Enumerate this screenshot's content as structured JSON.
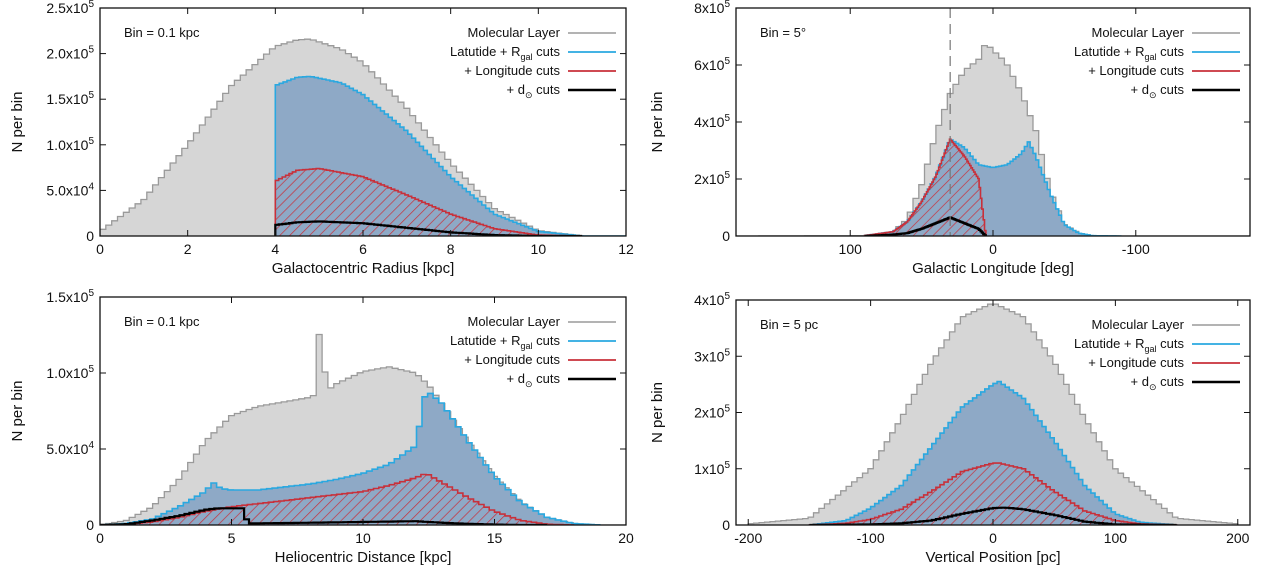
{
  "colors": {
    "molecular_layer": "#9a9a9a",
    "molecular_fill": "#d6d6d6",
    "latitude_rgal": "#2aa8e0",
    "latitude_fill": "#8ea9c6",
    "longitude": "#c8303a",
    "dsun": "#000000"
  },
  "chart_data": [
    {
      "type": "area",
      "id": "panel-radius",
      "bin_label": "Bin = 0.1 kpc",
      "xlabel": "Galactocentric Radius  [kpc]",
      "ylabel": "N per bin",
      "xlim": [
        0,
        12
      ],
      "ylim": [
        0,
        250000
      ],
      "x_reversed": false,
      "xticks": [
        {
          "value": 0,
          "label": "0"
        },
        {
          "value": 2,
          "label": "2"
        },
        {
          "value": 4,
          "label": "4"
        },
        {
          "value": 6,
          "label": "6"
        },
        {
          "value": 8,
          "label": "8"
        },
        {
          "value": 10,
          "label": "10"
        },
        {
          "value": 12,
          "label": "12"
        }
      ],
      "yticks": [
        {
          "value": 0,
          "label": "0",
          "sup": ""
        },
        {
          "value": 50000,
          "label": "5.0x10",
          "sup": "4"
        },
        {
          "value": 100000,
          "label": "1.0x10",
          "sup": "5"
        },
        {
          "value": 150000,
          "label": "1.5x10",
          "sup": "5"
        },
        {
          "value": 200000,
          "label": "2.0x10",
          "sup": "5"
        },
        {
          "value": 250000,
          "label": "2.5x10",
          "sup": "5"
        }
      ],
      "legend": [
        {
          "label": "Molecular Layer",
          "key": "molecular_layer"
        },
        {
          "label": "Latutide + R",
          "sub": "gal",
          "after": " cuts",
          "key": "latitude_rgal"
        },
        {
          "label": "+ Longitude cuts",
          "key": "longitude"
        },
        {
          "label": "+ d",
          "sub": "⊙",
          "after": " cuts",
          "key": "dsun"
        }
      ],
      "series": [
        {
          "name": "Molecular Layer",
          "style": "molecular",
          "x": [
            0,
            1,
            2,
            3,
            4,
            4.5,
            4.8,
            5.5,
            6,
            7,
            8,
            9,
            10,
            11,
            12
          ],
          "y": [
            5000,
            40000,
            100000,
            165000,
            208000,
            215000,
            216000,
            205000,
            190000,
            140000,
            80000,
            30000,
            6000,
            0,
            0
          ]
        },
        {
          "name": "Latutide + Rgal cuts",
          "style": "latitude",
          "x": [
            4,
            4.5,
            4.8,
            5.5,
            6,
            7,
            8,
            9,
            10,
            11,
            12
          ],
          "y": [
            165000,
            174000,
            175000,
            168000,
            155000,
            115000,
            65000,
            24000,
            5000,
            0,
            0
          ]
        },
        {
          "name": "+ Longitude cuts",
          "style": "longitude",
          "x": [
            4,
            4.5,
            5,
            6,
            7,
            8,
            9,
            10,
            11
          ],
          "y": [
            60000,
            72000,
            74000,
            65000,
            45000,
            24000,
            8000,
            1000,
            0
          ]
        },
        {
          "name": "+ d cuts",
          "style": "dsun",
          "x": [
            4,
            4.5,
            5,
            6,
            7,
            8,
            9,
            10,
            11
          ],
          "y": [
            12000,
            15000,
            16000,
            14000,
            9000,
            4000,
            1000,
            0,
            0
          ]
        }
      ],
      "vlines": []
    },
    {
      "type": "area",
      "id": "panel-longitude",
      "bin_label": "Bin = 5°",
      "xlabel": "Galactic Longitude  [deg]",
      "ylabel": "N per bin",
      "xlim": [
        180,
        -180
      ],
      "ylim": [
        0,
        800000
      ],
      "x_reversed": true,
      "xticks": [
        {
          "value": 100,
          "label": "100"
        },
        {
          "value": 0,
          "label": "0"
        },
        {
          "value": -100,
          "label": "-100"
        }
      ],
      "yticks": [
        {
          "value": 0,
          "label": "0",
          "sup": ""
        },
        {
          "value": 200000,
          "label": "2x10",
          "sup": "5"
        },
        {
          "value": 400000,
          "label": "4x10",
          "sup": "5"
        },
        {
          "value": 600000,
          "label": "6x10",
          "sup": "5"
        },
        {
          "value": 800000,
          "label": "8x10",
          "sup": "5"
        }
      ],
      "legend": [
        {
          "label": "Molecular Layer",
          "key": "molecular_layer"
        },
        {
          "label": "Latutide + R",
          "sub": "gal",
          "after": " cuts",
          "key": "latitude_rgal"
        },
        {
          "label": "+ Longitude cuts",
          "key": "longitude"
        },
        {
          "label": "+ d",
          "sub": "⊙",
          "after": " cuts",
          "key": "dsun"
        }
      ],
      "series": [
        {
          "name": "Molecular Layer",
          "style": "molecular",
          "x": [
            180,
            90,
            70,
            60,
            50,
            40,
            30,
            20,
            10,
            5,
            0,
            -5,
            -10,
            -20,
            -30,
            -40,
            -50,
            -60,
            -70,
            -90,
            -180
          ],
          "y": [
            0,
            1000,
            15000,
            60000,
            180000,
            360000,
            500000,
            580000,
            620000,
            680000,
            650000,
            630000,
            600000,
            500000,
            370000,
            160000,
            40000,
            10000,
            1000,
            0,
            0
          ]
        },
        {
          "name": "Latutide + Rgal cuts",
          "style": "latitude",
          "x": [
            90,
            70,
            60,
            50,
            40,
            30,
            20,
            10,
            0,
            -10,
            -20,
            -25,
            -30,
            -40,
            -50,
            -60,
            -70,
            -90
          ],
          "y": [
            1000,
            15000,
            50000,
            120000,
            210000,
            340000,
            310000,
            250000,
            240000,
            250000,
            290000,
            330000,
            280000,
            150000,
            40000,
            10000,
            1000,
            0
          ]
        },
        {
          "name": "+ Longitude cuts",
          "style": "longitude",
          "x": [
            90,
            70,
            60,
            50,
            40,
            30,
            20,
            10,
            5
          ],
          "y": [
            1000,
            15000,
            50000,
            120000,
            210000,
            340000,
            280000,
            200000,
            0
          ]
        },
        {
          "name": "+ d cuts",
          "style": "dsun",
          "x": [
            90,
            70,
            60,
            50,
            40,
            30,
            20,
            10,
            5
          ],
          "y": [
            0,
            5000,
            10000,
            25000,
            45000,
            65000,
            45000,
            25000,
            0
          ]
        }
      ],
      "vlines": [
        30
      ]
    },
    {
      "type": "area",
      "id": "panel-heliocentric",
      "bin_label": "Bin = 0.1 kpc",
      "xlabel": "Heliocentric Distance  [kpc]",
      "ylabel": "N per bin",
      "xlim": [
        0,
        20
      ],
      "ylim": [
        0,
        150000
      ],
      "x_reversed": false,
      "xticks": [
        {
          "value": 0,
          "label": "0"
        },
        {
          "value": 5,
          "label": "5"
        },
        {
          "value": 10,
          "label": "10"
        },
        {
          "value": 15,
          "label": "15"
        },
        {
          "value": 20,
          "label": "20"
        }
      ],
      "yticks": [
        {
          "value": 0,
          "label": "0",
          "sup": ""
        },
        {
          "value": 50000,
          "label": "5.0x10",
          "sup": "4"
        },
        {
          "value": 100000,
          "label": "1.0x10",
          "sup": "5"
        },
        {
          "value": 150000,
          "label": "1.5x10",
          "sup": "5"
        }
      ],
      "legend": [
        {
          "label": "Molecular Layer",
          "key": "molecular_layer"
        },
        {
          "label": "Latutide + R",
          "sub": "gal",
          "after": " cuts",
          "key": "latitude_rgal"
        },
        {
          "label": "+ Longitude cuts",
          "key": "longitude"
        },
        {
          "label": "+ d",
          "sub": "⊙",
          "after": " cuts",
          "key": "dsun"
        }
      ],
      "series": [
        {
          "name": "Molecular Layer",
          "style": "molecular",
          "x": [
            0,
            1,
            2,
            3,
            4,
            5,
            6,
            7,
            8,
            8.2,
            8.4,
            8.6,
            9,
            10,
            11,
            12,
            12.5,
            13,
            14,
            15,
            16,
            17,
            18,
            19,
            20
          ],
          "y": [
            0,
            3000,
            12000,
            30000,
            55000,
            72000,
            78000,
            81000,
            84000,
            86000,
            145000,
            88000,
            93000,
            101000,
            104000,
            100000,
            92000,
            80000,
            55000,
            32000,
            15000,
            5000,
            1000,
            0,
            0
          ]
        },
        {
          "name": "Latutide + Rgal cuts",
          "style": "latitude",
          "x": [
            0,
            1,
            2,
            3,
            4,
            4.3,
            4.6,
            5,
            6,
            7,
            8,
            9,
            10,
            11,
            12,
            12.4,
            13,
            14,
            15,
            16,
            17,
            18,
            19
          ],
          "y": [
            0,
            1000,
            4000,
            12000,
            22000,
            28000,
            24000,
            23000,
            23000,
            25000,
            27000,
            30000,
            34000,
            40000,
            52000,
            89000,
            80000,
            55000,
            32000,
            15000,
            5000,
            1000,
            0
          ]
        },
        {
          "name": "+ Longitude cuts",
          "style": "longitude",
          "x": [
            0,
            1,
            2,
            3,
            4,
            5,
            6,
            7,
            8,
            9,
            10,
            11,
            12,
            12.4,
            13,
            14,
            15,
            16,
            17,
            18
          ],
          "y": [
            0,
            500,
            2000,
            5000,
            9000,
            12000,
            14000,
            16000,
            18000,
            20000,
            22000,
            26000,
            31000,
            34000,
            28000,
            18000,
            9000,
            3000,
            500,
            0
          ]
        },
        {
          "name": "+ d cuts",
          "style": "dsun",
          "x": [
            0,
            1,
            2,
            3,
            4,
            4.5,
            5.5,
            5.6,
            8,
            10,
            12,
            13,
            14,
            15,
            16,
            17
          ],
          "y": [
            0,
            500,
            3000,
            6000,
            10000,
            11000,
            11000,
            1000,
            1500,
            2000,
            2500,
            1500,
            800,
            300,
            0,
            0
          ]
        }
      ],
      "vlines": []
    },
    {
      "type": "area",
      "id": "panel-vertical",
      "bin_label": "Bin = 5 pc",
      "xlabel": "Vertical Position  [pc]",
      "ylabel": "N per bin",
      "xlim": [
        -210,
        210
      ],
      "ylim": [
        0,
        400000
      ],
      "x_reversed": false,
      "xticks": [
        {
          "value": -200,
          "label": "-200"
        },
        {
          "value": -100,
          "label": "-100"
        },
        {
          "value": 0,
          "label": "0"
        },
        {
          "value": 100,
          "label": "100"
        },
        {
          "value": 200,
          "label": "200"
        }
      ],
      "yticks": [
        {
          "value": 0,
          "label": "0",
          "sup": ""
        },
        {
          "value": 100000,
          "label": "1x10",
          "sup": "5"
        },
        {
          "value": 200000,
          "label": "2x10",
          "sup": "5"
        },
        {
          "value": 300000,
          "label": "3x10",
          "sup": "5"
        },
        {
          "value": 400000,
          "label": "4x10",
          "sup": "5"
        }
      ],
      "legend": [
        {
          "label": "Molecular Layer",
          "key": "molecular_layer"
        },
        {
          "label": "Latutide + R",
          "sub": "gal",
          "after": " cuts",
          "key": "latitude_rgal"
        },
        {
          "label": "+ Longitude cuts",
          "key": "longitude"
        },
        {
          "label": "+ d",
          "sub": "⊙",
          "after": " cuts",
          "key": "dsun"
        }
      ],
      "series": [
        {
          "name": "Molecular Layer",
          "style": "molecular",
          "x": [
            -200,
            -150,
            -100,
            -75,
            -50,
            -25,
            0,
            25,
            50,
            75,
            100,
            150,
            200
          ],
          "y": [
            2000,
            12000,
            100000,
            190000,
            290000,
            370000,
            395000,
            370000,
            290000,
            190000,
            100000,
            12000,
            2000
          ]
        },
        {
          "name": "Latutide + Rgal cuts",
          "style": "latitude",
          "x": [
            -150,
            -120,
            -100,
            -75,
            -50,
            -25,
            0,
            5,
            25,
            50,
            75,
            100,
            120,
            150
          ],
          "y": [
            0,
            8000,
            30000,
            70000,
            140000,
            210000,
            250000,
            255000,
            225000,
            150000,
            70000,
            20000,
            5000,
            0
          ]
        },
        {
          "name": "+ Longitude cuts",
          "style": "longitude",
          "x": [
            -150,
            -120,
            -100,
            -75,
            -50,
            -25,
            0,
            5,
            25,
            50,
            75,
            100,
            120,
            150
          ],
          "y": [
            0,
            3000,
            10000,
            28000,
            60000,
            95000,
            110000,
            110000,
            100000,
            60000,
            25000,
            8000,
            2000,
            0
          ]
        },
        {
          "name": "+ d cuts",
          "style": "dsun",
          "x": [
            -150,
            -100,
            -75,
            -50,
            -25,
            0,
            10,
            25,
            50,
            75,
            100,
            150
          ],
          "y": [
            0,
            1000,
            3000,
            8000,
            20000,
            30000,
            31000,
            28000,
            18000,
            6000,
            1000,
            0
          ]
        }
      ],
      "vlines": []
    }
  ]
}
